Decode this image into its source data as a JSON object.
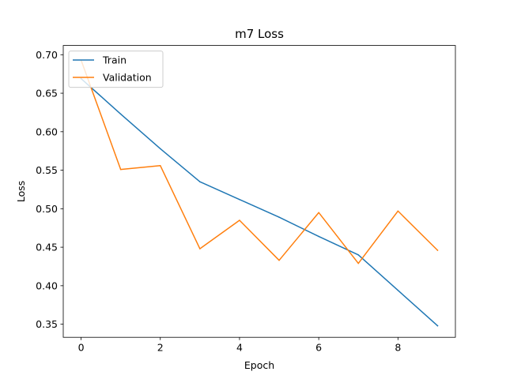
{
  "chart_data": {
    "type": "line",
    "title": "m7 Loss",
    "xlabel": "Epoch",
    "ylabel": "Loss",
    "x": [
      0,
      1,
      2,
      3,
      4,
      5,
      6,
      7,
      8,
      9
    ],
    "xlim": [
      -0.45,
      9.45
    ],
    "ylim": [
      0.333,
      0.712
    ],
    "xticks": [
      0,
      2,
      4,
      6,
      8
    ],
    "yticks": [
      0.35,
      0.4,
      0.45,
      0.5,
      0.55,
      0.6,
      0.65,
      0.7
    ],
    "grid": false,
    "legend_position": "top-left",
    "series": [
      {
        "name": "Train",
        "color": "#1f77b4",
        "values": [
          0.669,
          0.623,
          0.578,
          0.535,
          0.512,
          0.489,
          0.464,
          0.44,
          0.394,
          0.348
        ]
      },
      {
        "name": "Validation",
        "color": "#ff7f0e",
        "values": [
          0.693,
          0.551,
          0.556,
          0.448,
          0.485,
          0.433,
          0.495,
          0.429,
          0.497,
          0.446
        ]
      }
    ]
  }
}
